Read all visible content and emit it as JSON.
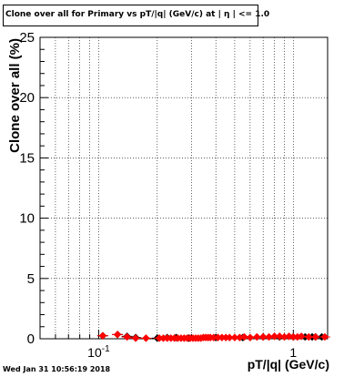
{
  "chart_data": {
    "type": "scatter",
    "title": "Clone  over all for Primary vs pT/|q| (GeV/c) at |  η | <= 1.0",
    "xlabel": "pT/|q| (GeV/c)",
    "ylabel": "Clone  over all (%)",
    "xscale": "log",
    "xlim": [
      0.05,
      1.5
    ],
    "ylim": [
      0,
      25
    ],
    "grid": true,
    "y_ticks": [
      0,
      5,
      10,
      15,
      20,
      25
    ],
    "y_tick_labels": [
      "0",
      "5",
      "10",
      "15",
      "20",
      "25"
    ],
    "x_tick_labels": [
      {
        "value": 0.1,
        "base": "10",
        "exp": "-1"
      },
      {
        "value": 1,
        "label": "1"
      }
    ],
    "series": [
      {
        "color": "#000000",
        "marker": "diamond",
        "x": [
          0.105,
          0.125,
          0.14,
          0.155,
          0.2,
          0.225,
          0.25,
          0.29,
          0.4,
          0.55,
          0.7,
          0.85,
          1.0,
          1.15,
          1.25,
          1.3,
          1.4
        ],
        "y": [
          0.25,
          0.35,
          0.2,
          0.1,
          0.05,
          0.1,
          0.1,
          0.05,
          0.1,
          0.1,
          0.15,
          0.15,
          0.15,
          0.15,
          0.15,
          0.15,
          0.15
        ]
      },
      {
        "color": "#ff0000",
        "marker": "diamond",
        "x": [
          0.105,
          0.125,
          0.14,
          0.155,
          0.175,
          0.205,
          0.215,
          0.225,
          0.235,
          0.245,
          0.255,
          0.265,
          0.275,
          0.285,
          0.295,
          0.305,
          0.315,
          0.325,
          0.335,
          0.345,
          0.355,
          0.365,
          0.375,
          0.39,
          0.41,
          0.43,
          0.45,
          0.47,
          0.5,
          0.53,
          0.56,
          0.6,
          0.65,
          0.7,
          0.75,
          0.8,
          0.85,
          0.9,
          0.95,
          1.0,
          1.05,
          1.1,
          1.2,
          1.3,
          1.45
        ],
        "y": [
          0.25,
          0.35,
          0.15,
          0.05,
          0.05,
          0.05,
          0.05,
          0.05,
          0.05,
          0.05,
          0.05,
          0.05,
          0.05,
          0.05,
          0.05,
          0.05,
          0.05,
          0.05,
          0.05,
          0.1,
          0.1,
          0.1,
          0.1,
          0.1,
          0.1,
          0.1,
          0.1,
          0.1,
          0.1,
          0.1,
          0.15,
          0.1,
          0.15,
          0.15,
          0.15,
          0.2,
          0.2,
          0.15,
          0.2,
          0.15,
          0.15,
          0.2,
          0.15,
          0.15,
          0.15
        ]
      }
    ]
  },
  "footer": {
    "timestamp": "Wed Jan 31 10:56:19 2018"
  }
}
